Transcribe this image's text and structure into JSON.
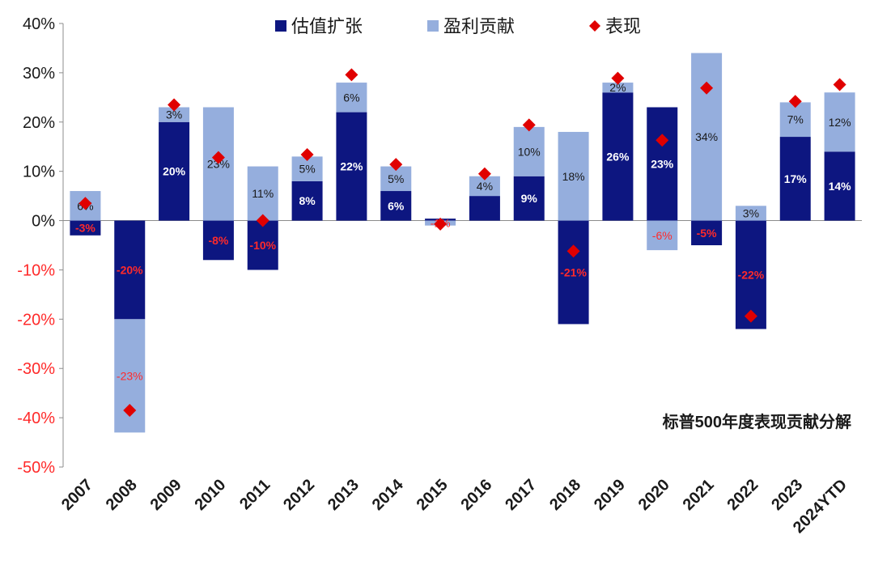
{
  "chart_data": {
    "type": "bar",
    "subtype": "stacked-bar-with-markers",
    "annotation": "标普500年度表现贡献分解",
    "categories": [
      "2007",
      "2008",
      "2009",
      "2010",
      "2011",
      "2012",
      "2013",
      "2014",
      "2015",
      "2016",
      "2017",
      "2018",
      "2019",
      "2020",
      "2021",
      "2022",
      "2023",
      "2024YTD"
    ],
    "series": [
      {
        "name": "估值扩张",
        "kind": "bar",
        "color": "#0d1680",
        "values": [
          -3,
          -20,
          20,
          -8,
          -10,
          8,
          22,
          6,
          0.4,
          5,
          9,
          -21,
          26,
          23,
          -5,
          -22,
          17,
          14
        ],
        "labels": [
          "-3%",
          "-20%",
          "20%",
          "-8%",
          "-10%",
          "8%",
          "22%",
          "6%",
          "",
          "",
          "9%",
          "-21%",
          "26%",
          "23%",
          "-5%",
          "-22%",
          "17%",
          "14%"
        ]
      },
      {
        "name": "盈利贡献",
        "kind": "bar",
        "color": "#95aedd",
        "values": [
          6,
          -23,
          3,
          23,
          11,
          5,
          6,
          5,
          -1,
          4,
          10,
          18,
          2,
          -6,
          34,
          3,
          7,
          12
        ],
        "labels": [
          "6%",
          "-23%",
          "3%",
          "23%",
          "11%",
          "5%",
          "6%",
          "5%",
          "-1%",
          "4%",
          "10%",
          "18%",
          "2%",
          "-6%",
          "34%",
          "3%",
          "7%",
          "12%"
        ]
      },
      {
        "name": "表现",
        "kind": "marker",
        "color": "#e00000",
        "values": [
          3.5,
          -38.5,
          23.5,
          12.8,
          0,
          13.4,
          29.6,
          11.4,
          -0.7,
          9.5,
          19.4,
          -6.2,
          28.9,
          16.3,
          26.9,
          -19.4,
          24.2,
          27.6
        ]
      }
    ],
    "ylim": [
      -50,
      40
    ],
    "yticks": [
      "40%",
      "30%",
      "20%",
      "10%",
      "0%",
      "-10%",
      "-20%",
      "-30%",
      "-40%",
      "-50%"
    ],
    "ytick_values": [
      40,
      30,
      20,
      10,
      0,
      -10,
      -20,
      -30,
      -40,
      -50
    ],
    "legend": {
      "position": "top-center"
    },
    "grid": false,
    "label_colors": {
      "negative": "#ff2a2a",
      "on_dark": "#ffffff",
      "on_light": "#1a1a1a"
    }
  }
}
